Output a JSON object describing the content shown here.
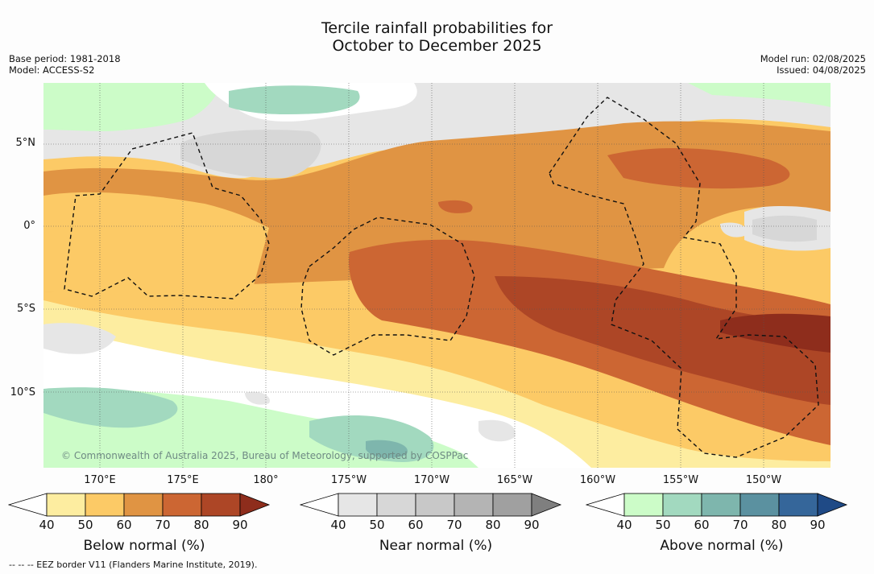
{
  "title": [
    "Tercile rainfall probabilities for",
    "October to December 2025"
  ],
  "meta_left": [
    "Base period: 1981-2018",
    "Model: ACCESS-S2"
  ],
  "meta_right": [
    "Model run: 02/08/2025",
    "Issued: 04/08/2025"
  ],
  "lat_labels": [
    "5°N",
    "0°",
    "5°S",
    "10°S"
  ],
  "lon_labels": [
    "170°E",
    "175°E",
    "180°",
    "175°W",
    "170°W",
    "165°W",
    "160°W",
    "155°W",
    "150°W"
  ],
  "credit": "© Commonwealth of Australia 2025, Bureau of Meteorology, supported by COSPPac",
  "colorbars": [
    {
      "name": "below",
      "title": "Below normal (%)",
      "ticks": [
        "40",
        "50",
        "60",
        "70",
        "80",
        "90"
      ],
      "colors": [
        "#ffffff",
        "#fdeda0",
        "#fcca66",
        "#e09443",
        "#cc6633",
        "#ad4626",
        "#8e2d1c"
      ]
    },
    {
      "name": "near",
      "title": "Near normal (%)",
      "ticks": [
        "40",
        "50",
        "60",
        "70",
        "80",
        "90"
      ],
      "colors": [
        "#ffffff",
        "#e6e6e6",
        "#d7d7d7",
        "#c8c8c8",
        "#b4b4b4",
        "#a0a0a0",
        "#7f7f7f"
      ]
    },
    {
      "name": "above",
      "title": "Above normal (%)",
      "ticks": [
        "40",
        "50",
        "60",
        "70",
        "80",
        "90"
      ],
      "colors": [
        "#ffffff",
        "#ccfcc8",
        "#a2d9bf",
        "#7eb6ad",
        "#5b91a0",
        "#35669a",
        "#1f4a86"
      ]
    }
  ],
  "footer": "--  --  -- EEZ border V11 (Flanders Marine Institute, 2019)."
}
